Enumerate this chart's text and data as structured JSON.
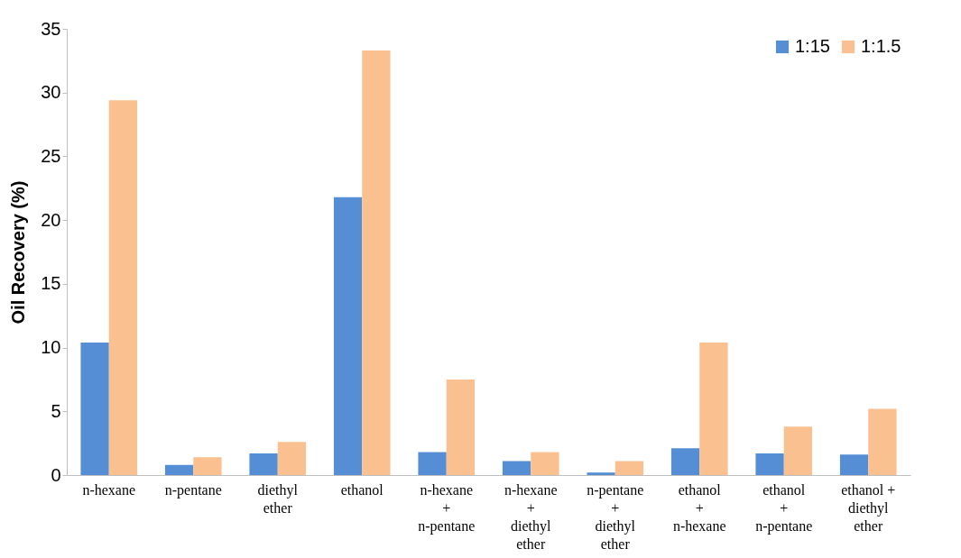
{
  "chart_data": {
    "type": "bar",
    "ylabel": "Oil Recovery (%)",
    "categories": [
      "n-hexane",
      "n-pentane",
      "diethyl\nether",
      "ethanol",
      "n-hexane\n+\nn-pentane",
      "n-hexane\n+\ndiethyl\nether",
      "n-pentane\n+\ndiethyl\nether",
      "ethanol\n+\nn-hexane",
      "ethanol\n+\nn-pentane",
      "ethanol +\ndiethyl\nether"
    ],
    "series": [
      {
        "name": "1:15",
        "color": "#558ed5",
        "values": [
          10.4,
          0.8,
          1.7,
          21.8,
          1.8,
          1.1,
          0.2,
          2.1,
          1.7,
          1.6
        ]
      },
      {
        "name": "1:1.5",
        "color": "#fac090",
        "values": [
          29.4,
          1.4,
          2.6,
          33.3,
          7.5,
          1.8,
          1.1,
          10.4,
          3.8,
          5.2
        ]
      }
    ],
    "ylim": [
      0,
      35
    ],
    "yticks": [
      0,
      5,
      10,
      15,
      20,
      25,
      30,
      35
    ],
    "grid": false,
    "legend": "top right"
  }
}
